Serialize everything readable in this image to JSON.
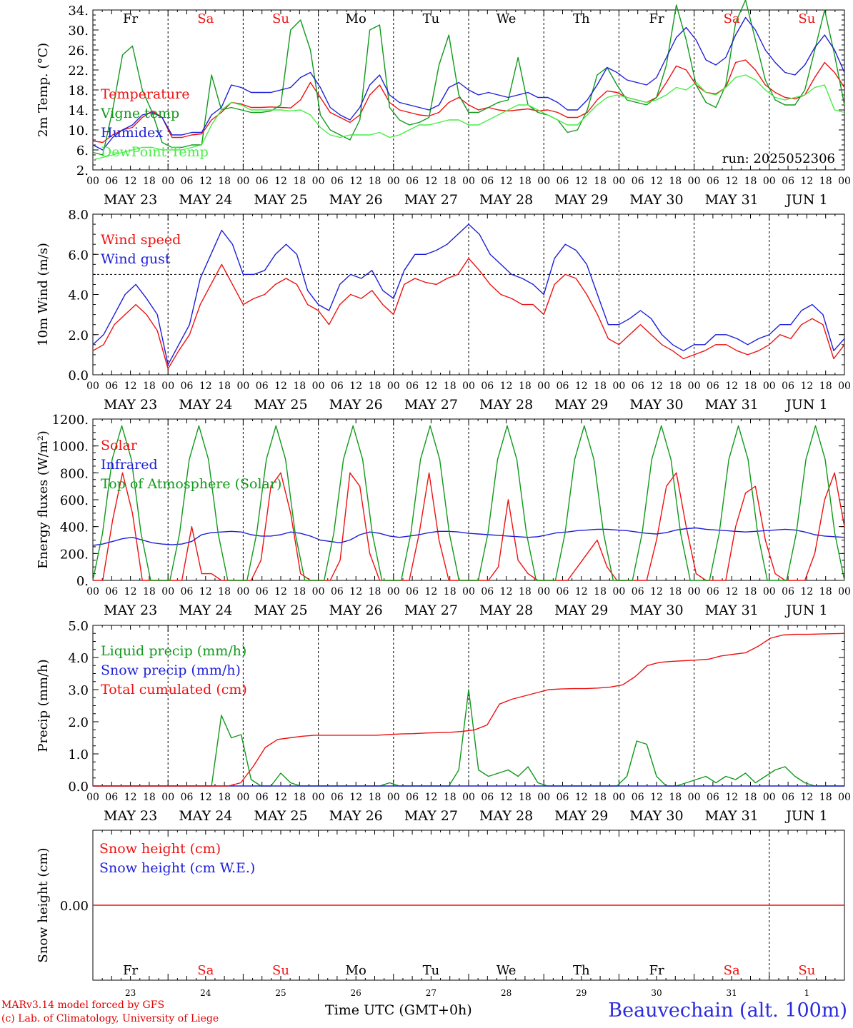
{
  "chart_data": [
    {
      "type": "line",
      "ylabel": "2m Temp. (°C)",
      "ylim": [
        2,
        34
      ],
      "yticks": [
        "2.",
        "6.",
        "10.",
        "14.",
        "18.",
        "22.",
        "26.",
        "30.",
        "34."
      ],
      "run_label": "run: 2025052306",
      "legend_placement": "left",
      "x_step_hours": 6,
      "series": [
        {
          "name": "Temperature",
          "color": "#ee1111",
          "values": [
            7.8,
            7.5,
            9.0,
            10.0,
            10.5,
            12.5,
            13.8,
            12.5,
            8.5,
            8.5,
            9.0,
            9.2,
            12.0,
            13.5,
            15.5,
            15.2,
            14.5,
            14.5,
            14.6,
            14.5,
            14.4,
            16.0,
            19.5,
            16.5,
            13.5,
            12.5,
            11.5,
            13.0,
            17.0,
            19.0,
            15.5,
            14.0,
            13.5,
            13.0,
            12.8,
            13.5,
            15.5,
            16.5,
            15.0,
            14.0,
            14.5,
            14.0,
            13.8,
            14.0,
            14.2,
            13.8,
            14.0,
            13.5,
            12.5,
            12.5,
            13.5,
            16.0,
            17.8,
            17.5,
            16.5,
            16.0,
            15.5,
            16.5,
            19.5,
            22.8,
            22.0,
            19.0,
            17.5,
            17.2,
            18.5,
            23.5,
            24.0,
            22.0,
            19.0,
            17.5,
            16.5,
            16.2,
            17.0,
            20.5,
            23.5,
            21.5,
            18.5
          ]
        },
        {
          "name": "Vigne temp",
          "color": "#11991c",
          "values": [
            5.5,
            5.0,
            14.0,
            25.0,
            26.8,
            18.0,
            13.5,
            7.5,
            6.5,
            6.5,
            7.0,
            7.0,
            21.0,
            14.0,
            14.5,
            14.0,
            13.5,
            13.5,
            13.8,
            15.0,
            30.0,
            32.0,
            26.0,
            13.0,
            10.0,
            9.0,
            8.0,
            12.0,
            30.0,
            31.0,
            14.5,
            12.0,
            11.0,
            11.5,
            12.5,
            23.0,
            29.0,
            17.0,
            13.5,
            13.5,
            14.5,
            15.5,
            16.0,
            24.5,
            15.0,
            13.5,
            13.0,
            12.0,
            9.5,
            10.0,
            14.0,
            21.0,
            22.5,
            19.0,
            16.0,
            15.5,
            15.0,
            16.5,
            23.0,
            35.0,
            28.0,
            19.0,
            15.5,
            14.5,
            19.0,
            31.5,
            36.0,
            28.0,
            20.0,
            16.0,
            15.0,
            15.0,
            18.0,
            26.0,
            34.0,
            25.0,
            15.0
          ]
        },
        {
          "name": "Humidex",
          "color": "#1e1ed9",
          "values": [
            7.0,
            6.0,
            8.5,
            10.0,
            11.0,
            13.0,
            13.5,
            12.5,
            9.0,
            9.0,
            9.5,
            9.5,
            13.0,
            14.5,
            19.0,
            18.5,
            17.5,
            17.5,
            17.5,
            18.0,
            18.5,
            20.5,
            21.5,
            18.5,
            14.5,
            13.0,
            12.0,
            14.5,
            19.0,
            21.0,
            17.0,
            15.5,
            15.0,
            14.5,
            14.0,
            15.0,
            18.5,
            19.5,
            18.0,
            17.0,
            17.5,
            17.0,
            16.5,
            17.0,
            17.5,
            16.5,
            16.5,
            15.5,
            14.0,
            14.0,
            16.0,
            19.0,
            22.5,
            21.5,
            20.0,
            19.5,
            19.0,
            20.5,
            24.5,
            28.5,
            30.5,
            28.0,
            24.0,
            23.0,
            24.5,
            29.0,
            32.5,
            30.0,
            26.0,
            23.5,
            21.5,
            21.0,
            23.0,
            26.5,
            29.0,
            26.0,
            21.5
          ]
        },
        {
          "name": "DewPoint Temp",
          "color": "#44ee44",
          "values": [
            4.0,
            4.5,
            5.0,
            5.5,
            6.0,
            6.5,
            6.5,
            6.0,
            6.0,
            6.0,
            6.5,
            7.0,
            11.0,
            14.0,
            15.5,
            15.0,
            14.0,
            14.0,
            14.0,
            14.0,
            13.8,
            14.0,
            13.0,
            10.5,
            9.0,
            8.5,
            9.0,
            9.0,
            9.0,
            9.5,
            8.5,
            9.0,
            10.0,
            11.0,
            11.0,
            11.5,
            12.0,
            12.0,
            11.0,
            11.0,
            12.0,
            13.0,
            14.0,
            15.0,
            15.0,
            14.0,
            13.0,
            12.0,
            11.0,
            11.0,
            13.0,
            15.0,
            16.5,
            17.0,
            16.5,
            16.0,
            15.5,
            16.0,
            17.0,
            18.5,
            18.0,
            19.5,
            17.5,
            17.0,
            18.5,
            20.5,
            21.0,
            20.0,
            18.0,
            16.5,
            16.0,
            16.5,
            17.0,
            18.5,
            19.0,
            14.0,
            13.5
          ]
        }
      ]
    },
    {
      "type": "line",
      "ylabel": "10m Wind (m/s)",
      "ylim": [
        0,
        8
      ],
      "yticks": [
        "0.0",
        "2.0",
        "4.0",
        "6.0",
        "8.0"
      ],
      "reference_line": 5,
      "legend_placement": "left",
      "x_step_hours": 6,
      "series": [
        {
          "name": "Wind speed",
          "color": "#ee1111",
          "values": [
            1.2,
            1.5,
            2.5,
            3.0,
            3.5,
            3.0,
            2.2,
            0.3,
            1.2,
            2.0,
            3.5,
            4.5,
            5.5,
            4.5,
            3.5,
            3.8,
            4.0,
            4.5,
            4.8,
            4.5,
            3.5,
            3.2,
            2.5,
            3.5,
            4.0,
            3.8,
            4.2,
            3.5,
            3.0,
            4.5,
            4.8,
            4.6,
            4.5,
            4.8,
            5.0,
            5.8,
            5.2,
            4.5,
            4.0,
            3.8,
            3.5,
            3.5,
            3.0,
            4.5,
            5.0,
            4.8,
            4.0,
            3.0,
            1.8,
            1.5,
            2.0,
            2.5,
            2.0,
            1.5,
            1.2,
            0.8,
            1.0,
            1.2,
            1.5,
            1.5,
            1.2,
            1.0,
            1.2,
            1.5,
            2.0,
            1.8,
            2.5,
            2.8,
            2.5,
            0.8,
            1.5
          ]
        },
        {
          "name": "Wind gust",
          "color": "#1e1ed9",
          "values": [
            1.5,
            2.0,
            3.0,
            4.0,
            4.5,
            3.8,
            3.0,
            0.5,
            1.5,
            2.5,
            4.8,
            6.0,
            7.2,
            6.5,
            5.0,
            5.0,
            5.2,
            6.0,
            6.5,
            6.0,
            4.2,
            3.5,
            3.2,
            4.5,
            5.0,
            4.8,
            5.2,
            4.2,
            3.8,
            5.2,
            6.0,
            6.0,
            6.2,
            6.5,
            7.0,
            7.5,
            7.0,
            6.0,
            5.5,
            5.0,
            4.8,
            4.5,
            4.0,
            5.8,
            6.5,
            6.2,
            5.5,
            4.0,
            2.5,
            2.5,
            2.8,
            3.2,
            2.8,
            2.0,
            1.5,
            1.2,
            1.5,
            1.5,
            2.0,
            2.0,
            1.8,
            1.5,
            1.8,
            2.0,
            2.5,
            2.5,
            3.2,
            3.5,
            3.0,
            1.2,
            1.8
          ]
        }
      ]
    },
    {
      "type": "line",
      "ylabel": "Energy fluxes (W/m²)",
      "ylim": [
        0,
        1200
      ],
      "yticks": [
        "0.",
        "200.",
        "400.",
        "600.",
        "800.",
        "1000.",
        "1200."
      ],
      "legend_placement": "left",
      "x_step_hours": 6,
      "series": [
        {
          "name": "Solar",
          "color": "#ee1111",
          "values": [
            0,
            0,
            450,
            800,
            500,
            0,
            0,
            0,
            0,
            0,
            400,
            50,
            50,
            0,
            0,
            0,
            0,
            150,
            700,
            800,
            500,
            50,
            0,
            0,
            0,
            150,
            800,
            700,
            200,
            0,
            0,
            0,
            0,
            350,
            800,
            300,
            0,
            0,
            0,
            0,
            0,
            100,
            600,
            150,
            50,
            0,
            0,
            0,
            0,
            100,
            200,
            300,
            100,
            0,
            0,
            0,
            0,
            300,
            700,
            800,
            400,
            50,
            0,
            0,
            0,
            400,
            650,
            700,
            300,
            50,
            0,
            0,
            0,
            200,
            600,
            800,
            400
          ]
        },
        {
          "name": "Infrared",
          "color": "#1e1ed9",
          "values": [
            260,
            270,
            290,
            310,
            320,
            300,
            280,
            270,
            265,
            270,
            290,
            340,
            355,
            360,
            365,
            360,
            340,
            330,
            330,
            340,
            360,
            350,
            330,
            300,
            290,
            280,
            300,
            340,
            360,
            350,
            330,
            320,
            330,
            340,
            355,
            365,
            365,
            360,
            350,
            345,
            340,
            335,
            330,
            325,
            320,
            325,
            340,
            355,
            360,
            370,
            375,
            380,
            380,
            375,
            370,
            360,
            350,
            345,
            355,
            375,
            385,
            390,
            380,
            375,
            370,
            365,
            360,
            365,
            370,
            375,
            380,
            375,
            360,
            340,
            330,
            325,
            320
          ]
        },
        {
          "name": "Top of Atmosphere (Solar)",
          "color": "#11991c",
          "values": [
            0,
            350,
            900,
            1150,
            900,
            350,
            0,
            0,
            0,
            350,
            900,
            1150,
            900,
            350,
            0,
            0,
            0,
            350,
            900,
            1150,
            900,
            350,
            0,
            0,
            0,
            350,
            900,
            1150,
            900,
            350,
            0,
            0,
            0,
            350,
            900,
            1150,
            900,
            350,
            0,
            0,
            0,
            350,
            900,
            1150,
            900,
            350,
            0,
            0,
            0,
            350,
            900,
            1150,
            900,
            350,
            0,
            0,
            0,
            350,
            900,
            1150,
            900,
            350,
            0,
            0,
            0,
            350,
            900,
            1150,
            900,
            350,
            0,
            0,
            0,
            350,
            900,
            1150,
            900,
            350,
            0
          ]
        }
      ]
    },
    {
      "type": "line",
      "ylabel": "Precip (mm/h)",
      "ylim": [
        0,
        5
      ],
      "yticks": [
        "0.0",
        "1.0",
        "2.0",
        "3.0",
        "4.0",
        "5.0"
      ],
      "legend_placement": "left",
      "x_step_hours": 6,
      "series": [
        {
          "name": "Liquid precip (mm/h)",
          "color": "#11991c",
          "values": [
            0,
            0,
            0,
            0,
            0,
            0,
            0,
            0,
            0,
            0,
            0,
            0,
            0,
            2.2,
            1.5,
            1.6,
            0.2,
            0,
            0,
            0.4,
            0.1,
            0,
            0,
            0,
            0,
            0,
            0,
            0,
            0,
            0,
            0.1,
            0,
            0,
            0,
            0,
            0,
            0,
            0.5,
            3.0,
            0.5,
            0.3,
            0.4,
            0.5,
            0.3,
            0.6,
            0.1,
            0,
            0,
            0,
            0,
            0,
            0,
            0,
            0,
            0.3,
            1.4,
            1.3,
            0.3,
            0,
            0,
            0.1,
            0.2,
            0.3,
            0.1,
            0.3,
            0.2,
            0.4,
            0.1,
            0.3,
            0.5,
            0.6,
            0.3,
            0.1,
            0,
            0,
            0,
            0
          ]
        },
        {
          "name": "Snow precip (mm/h)",
          "color": "#1e1ed9",
          "values": [
            0,
            0,
            0,
            0,
            0,
            0,
            0,
            0,
            0,
            0,
            0,
            0,
            0,
            0,
            0,
            0,
            0,
            0,
            0,
            0,
            0,
            0,
            0,
            0,
            0,
            0,
            0,
            0,
            0,
            0,
            0,
            0,
            0,
            0,
            0,
            0,
            0,
            0,
            0,
            0,
            0,
            0,
            0,
            0,
            0,
            0,
            0,
            0,
            0,
            0,
            0,
            0,
            0,
            0,
            0,
            0,
            0,
            0,
            0,
            0,
            0,
            0,
            0,
            0,
            0,
            0,
            0,
            0,
            0,
            0,
            0,
            0,
            0,
            0,
            0,
            0,
            0
          ]
        },
        {
          "name": "Total cumulated (cm)",
          "color": "#ee1111",
          "values": [
            0,
            0,
            0,
            0,
            0,
            0,
            0,
            0,
            0,
            0,
            0,
            0,
            0.1,
            0.6,
            1.2,
            1.45,
            1.5,
            1.55,
            1.58,
            1.58,
            1.58,
            1.58,
            1.58,
            1.58,
            1.6,
            1.62,
            1.63,
            1.65,
            1.66,
            1.67,
            1.7,
            1.75,
            1.9,
            2.55,
            2.7,
            2.8,
            2.9,
            3.0,
            3.02,
            3.03,
            3.03,
            3.05,
            3.08,
            3.15,
            3.4,
            3.75,
            3.85,
            3.88,
            3.9,
            3.92,
            3.95,
            4.05,
            4.1,
            4.15,
            4.35,
            4.6,
            4.7,
            4.72,
            4.72,
            4.73,
            4.74,
            4.75
          ]
        }
      ]
    },
    {
      "type": "line",
      "ylabel": "Snow height (cm)",
      "ylim": [
        -1,
        1
      ],
      "yticks": [
        "0.00"
      ],
      "legend_placement": "left",
      "x_step_hours": 6,
      "series": [
        {
          "name": "Snow height (cm)",
          "color": "#ee1111",
          "values": [
            0,
            0
          ]
        },
        {
          "name": "Snow height (cm W.E.)",
          "color": "#1e1ed9",
          "values": []
        }
      ]
    }
  ],
  "days": [
    {
      "abbr": "Fr",
      "date": "MAY 23",
      "num": "23",
      "weekend": false
    },
    {
      "abbr": "Sa",
      "date": "MAY 24",
      "num": "24",
      "weekend": true
    },
    {
      "abbr": "Su",
      "date": "MAY 25",
      "num": "25",
      "weekend": true
    },
    {
      "abbr": "Mo",
      "date": "MAY 26",
      "num": "26",
      "weekend": false
    },
    {
      "abbr": "Tu",
      "date": "MAY 27",
      "num": "27",
      "weekend": false
    },
    {
      "abbr": "We",
      "date": "MAY 28",
      "num": "28",
      "weekend": false
    },
    {
      "abbr": "Th",
      "date": "MAY 29",
      "num": "29",
      "weekend": false
    },
    {
      "abbr": "Fr",
      "date": "MAY 30",
      "num": "30",
      "weekend": false
    },
    {
      "abbr": "Sa",
      "date": "MAY 31",
      "num": "31",
      "weekend": true
    },
    {
      "abbr": "Su",
      "date": "JUN  1",
      "num": "1",
      "weekend": true
    }
  ],
  "hour_ticks": [
    "00",
    "06",
    "12",
    "18"
  ],
  "colors": {
    "weekday": "#000000",
    "weekend": "#ee1111"
  },
  "footer": {
    "credit_line1": "MARv3.14 model forced by GFS",
    "credit_line2": "(c) Lab. of Climatology, University of Liege",
    "xlabel": "Time UTC (GMT+0h)",
    "station": "Beauvechain (alt. 100m)"
  }
}
